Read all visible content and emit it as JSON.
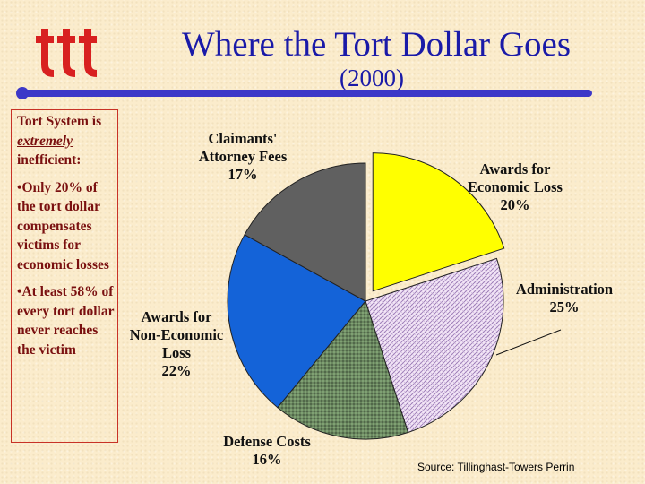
{
  "header": {
    "title": "Where the Tort Dollar Goes",
    "subtitle": "(2000)"
  },
  "sidebar": {
    "heading_pre": "Tort System is ",
    "heading_em": "extremely",
    "heading_post": " inefficient:",
    "bullets": [
      "Only 20% of the tort dollar compensates victims for economic losses",
      "At least 58% of every tort dollar never reaches the victim"
    ]
  },
  "source": "Source: Tillinghast-Towers Perrin",
  "colors": {
    "title": "#1a1aa8",
    "rule": "#3d38c8",
    "sidebar_text": "#7a1010",
    "sidebar_border": "#c83226",
    "economic": "#ffff00",
    "administration": "#f3e6f7",
    "defense": "#6b8760",
    "non_economic": "#1463d8",
    "claimant_fees": "#606060"
  },
  "chart_data": {
    "type": "pie",
    "title": "Where the Tort Dollar Goes",
    "subtitle": "(2000)",
    "unit": "%",
    "slices": [
      {
        "key": "economic",
        "label_lines": [
          "Awards for",
          "Economic Loss"
        ],
        "value": 20,
        "value_label": "20%",
        "exploded": true
      },
      {
        "key": "administration",
        "label_lines": [
          "Administration"
        ],
        "value": 25,
        "value_label": "25%",
        "exploded": false
      },
      {
        "key": "defense",
        "label_lines": [
          "Defense Costs"
        ],
        "value": 16,
        "value_label": "16%",
        "exploded": false
      },
      {
        "key": "non_economic",
        "label_lines": [
          "Awards for",
          "Non-Economic",
          "Loss"
        ],
        "value": 22,
        "value_label": "22%",
        "exploded": false
      },
      {
        "key": "claimant_fees",
        "label_lines": [
          "Claimants'",
          "Attorney Fees"
        ],
        "value": 17,
        "value_label": "17%",
        "exploded": false
      }
    ]
  }
}
